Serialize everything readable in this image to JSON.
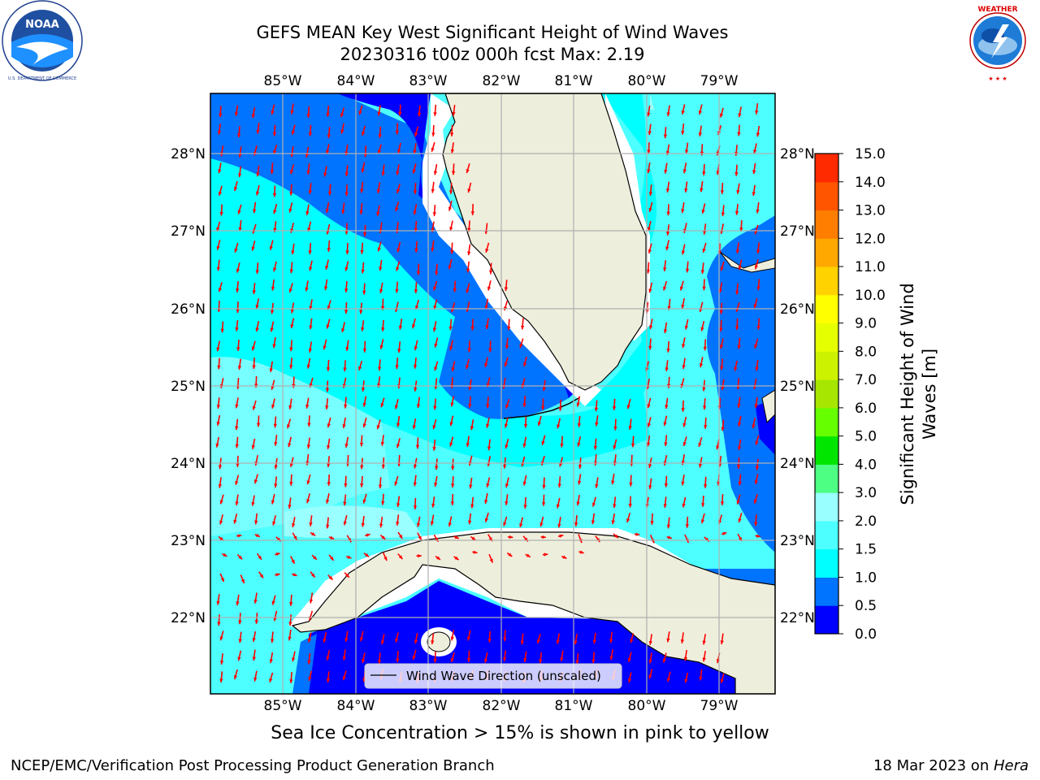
{
  "title": {
    "line1": "GEFS MEAN Key West Significant Height of Wind Waves",
    "line2": "20230316 t00z 000h fcst   Max: 2.19"
  },
  "logos": {
    "left": {
      "name": "NOAA",
      "ring_text": "NATIONAL OCEANIC AND ATMOSPHERIC ADMINISTRATION",
      "bottom_text": "U.S. DEPARTMENT OF COMMERCE"
    },
    "right": {
      "name": "NATIONAL WEATHER SERVICE"
    }
  },
  "map": {
    "lon_labels": [
      "85°W",
      "84°W",
      "83°W",
      "82°W",
      "81°W",
      "80°W",
      "79°W"
    ],
    "lat_labels": [
      "28°N",
      "27°N",
      "26°N",
      "25°N",
      "24°N",
      "23°N",
      "22°N"
    ],
    "legend_label": "Wind Wave Direction (unscaled)",
    "colors": {
      "land": "#eeeedc",
      "arrow": "#ff0000",
      "grid": "#b0b0b0",
      "coast": "#000000"
    }
  },
  "colorbar": {
    "label": "Significant Height of Wind Waves [m]",
    "label_line1": "Significant Height of Wind",
    "label_line2": "Waves [m]",
    "ticks": [
      "0.0",
      "0.5",
      "1.0",
      "1.5",
      "2.0",
      "3.0",
      "4.0",
      "5.0",
      "6.0",
      "7.0",
      "8.0",
      "9.0",
      "10.0",
      "11.0",
      "12.0",
      "13.0",
      "14.0",
      "15.0"
    ],
    "colors": [
      "#0000ff",
      "#0073ff",
      "#00ffff",
      "#4dffff",
      "#9affff",
      "#4dff83",
      "#00e600",
      "#66ff00",
      "#a6e600",
      "#ccf200",
      "#e6ff00",
      "#ffff00",
      "#ffd200",
      "#ffa800",
      "#ff7e00",
      "#ff5400",
      "#ff2a00",
      "#ff0000"
    ]
  },
  "footer": {
    "note": "Sea Ice Concentration > 15% is shown in pink to yellow",
    "left": "NCEP/EMC/Verification Post Processing Product Generation Branch",
    "right_date": "18 Mar 2023 on ",
    "right_machine": "Hera"
  }
}
